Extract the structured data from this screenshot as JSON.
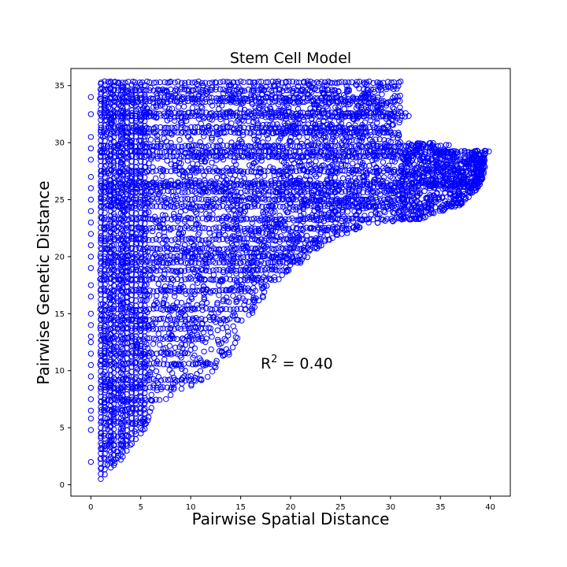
{
  "chart_data": {
    "type": "scatter",
    "title": "Stem Cell Model",
    "xlabel": "Pairwise Spatial Distance",
    "ylabel": "Pairwise Genetic Distance",
    "xlim": [
      -2,
      42
    ],
    "ylim": [
      -1,
      36.5
    ],
    "x_ticks": [
      0,
      5,
      10,
      15,
      20,
      25,
      30,
      35,
      40
    ],
    "y_ticks": [
      0,
      5,
      10,
      15,
      20,
      25,
      30,
      35
    ],
    "grid": false,
    "marker": "open-circle",
    "color": "#0000ff",
    "annotation": {
      "prefix": "R",
      "superscript": "2",
      "suffix": " = 0.40",
      "x": 17,
      "y": 10.2
    },
    "envelope": [
      [
        0,
        0.5
      ],
      [
        1,
        0.5
      ],
      [
        2,
        1.5
      ],
      [
        3,
        2.2
      ],
      [
        4,
        3.5
      ],
      [
        5,
        4.5
      ],
      [
        6,
        5.5
      ],
      [
        7,
        6.8
      ],
      [
        8,
        7.6
      ],
      [
        10,
        8.5
      ],
      [
        12,
        9.5
      ],
      [
        14,
        11.5
      ],
      [
        15,
        13.5
      ],
      [
        17,
        16
      ],
      [
        19,
        18
      ],
      [
        21,
        19.5
      ],
      [
        24,
        21.5
      ],
      [
        27,
        22.5
      ],
      [
        29,
        23
      ],
      [
        33,
        23.3
      ],
      [
        37,
        24.5
      ],
      [
        39,
        26.2
      ],
      [
        40,
        29.2
      ]
    ],
    "series": [
      {
        "band_points": [
          [
            0,
            34.0
          ],
          [
            0,
            32.5
          ],
          [
            0,
            30.5
          ],
          [
            0,
            29.5
          ],
          [
            0,
            28.5
          ],
          [
            0,
            27.0
          ],
          [
            0,
            26.0
          ],
          [
            0,
            25.0
          ],
          [
            0,
            24.0
          ],
          [
            0,
            23.0
          ],
          [
            0,
            22.0
          ],
          [
            0,
            21.0
          ],
          [
            0,
            20.0
          ],
          [
            0,
            19.0
          ],
          [
            0,
            17.5
          ],
          [
            0,
            16.5
          ],
          [
            0,
            15.0
          ],
          [
            0,
            14.0
          ],
          [
            0,
            13.0
          ],
          [
            0,
            12.5
          ],
          [
            0,
            11.5
          ],
          [
            0,
            10.5
          ],
          [
            0,
            9.5
          ],
          [
            0,
            8.5
          ],
          [
            0,
            7.5
          ],
          [
            0,
            6.5
          ],
          [
            0,
            5.8
          ],
          [
            0,
            4.8
          ],
          [
            0,
            2.0
          ]
        ],
        "hlines": [
          [
            1.0,
            31.4,
            35.3
          ],
          [
            1.0,
            24.5,
            34.6
          ],
          [
            1.0,
            28.0,
            33.9
          ],
          [
            1.0,
            30.5,
            33.6
          ],
          [
            1.0,
            31.5,
            32.6
          ],
          [
            1.0,
            32.0,
            32.3
          ],
          [
            1.0,
            29.5,
            31.3
          ],
          [
            1.0,
            31.0,
            30.9
          ],
          [
            1.0,
            33.0,
            29.7
          ],
          [
            1.0,
            40.0,
            29.2
          ],
          [
            1.0,
            32.5,
            28.8
          ],
          [
            1.0,
            37.0,
            27.5
          ],
          [
            1.0,
            35.5,
            26.4
          ],
          [
            1.0,
            38.5,
            26.2
          ],
          [
            1.0,
            31.0,
            25.7
          ],
          [
            1.0,
            32.0,
            25.0
          ],
          [
            1.0,
            34.0,
            24.4
          ],
          [
            1.0,
            36.5,
            23.3
          ],
          [
            1.0,
            31.0,
            22.5
          ],
          [
            1.0,
            30.0,
            21.5
          ],
          [
            1.0,
            27.5,
            20.7
          ],
          [
            1.0,
            26.5,
            20.0
          ],
          [
            1.0,
            24.0,
            19.5
          ],
          [
            1.0,
            22.0,
            18.8
          ],
          [
            1.0,
            19.5,
            18.0
          ],
          [
            1.0,
            16.5,
            17.0
          ],
          [
            1.0,
            15.5,
            15.4
          ],
          [
            1.0,
            14.0,
            14.5
          ],
          [
            1.0,
            12.0,
            13.7
          ],
          [
            1.0,
            11.5,
            12.8
          ],
          [
            1.0,
            10.0,
            11.5
          ],
          [
            1.0,
            12.0,
            10.6
          ],
          [
            1.0,
            11.5,
            9.2
          ],
          [
            1.0,
            8.5,
            8.5
          ],
          [
            1.0,
            7.0,
            7.4
          ],
          [
            1.0,
            5.5,
            6.6
          ],
          [
            1.0,
            5.0,
            5.5
          ],
          [
            1.0,
            4.0,
            4.3
          ],
          [
            1.0,
            3.5,
            3.5
          ],
          [
            1.0,
            3.0,
            2.3
          ]
        ]
      }
    ]
  }
}
